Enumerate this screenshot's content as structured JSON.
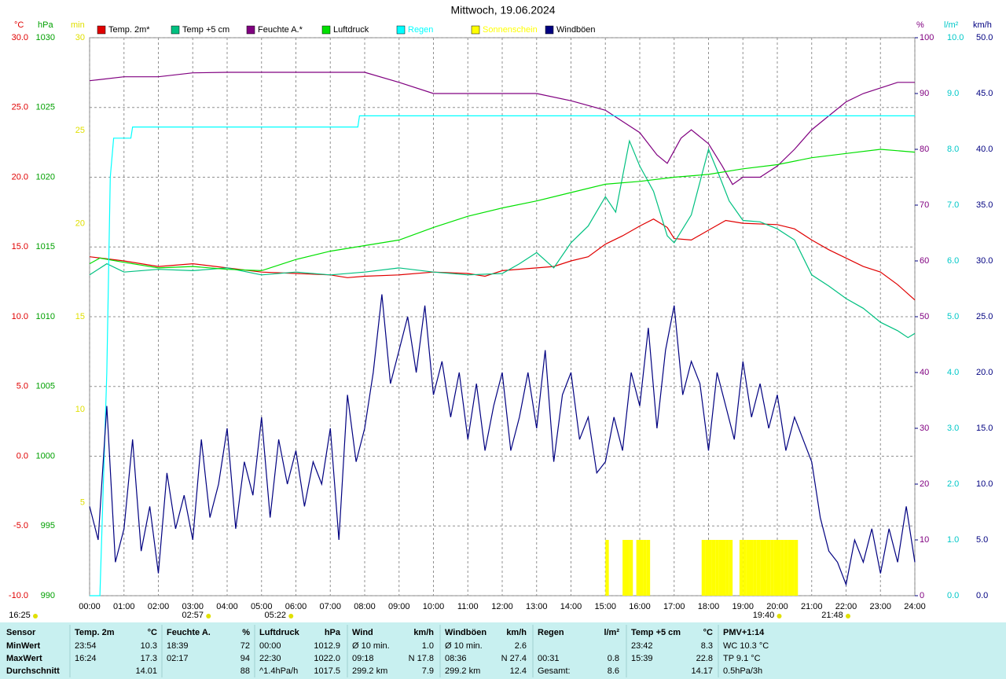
{
  "chart_data": {
    "type": "line",
    "title": "Mittwoch, 19.06.2024",
    "xlim": [
      0,
      24
    ],
    "xticks": [
      {
        "value": 0,
        "label": "00:00"
      },
      {
        "value": 1,
        "label": "01:00"
      },
      {
        "value": 2,
        "label": "02:00"
      },
      {
        "value": 3,
        "label": "03:00"
      },
      {
        "value": 4,
        "label": "04:00"
      },
      {
        "value": 5,
        "label": "05:00"
      },
      {
        "value": 6,
        "label": "06:00"
      },
      {
        "value": 7,
        "label": "07:00"
      },
      {
        "value": 8,
        "label": "08:00"
      },
      {
        "value": 9,
        "label": "09:00"
      },
      {
        "value": 10,
        "label": "10:00"
      },
      {
        "value": 11,
        "label": "11:00"
      },
      {
        "value": 12,
        "label": "12:00"
      },
      {
        "value": 13,
        "label": "13:00"
      },
      {
        "value": 14,
        "label": "14:00"
      },
      {
        "value": 15,
        "label": "15:00"
      },
      {
        "value": 16,
        "label": "16:00"
      },
      {
        "value": 17,
        "label": "17:00"
      },
      {
        "value": 18,
        "label": "18:00"
      },
      {
        "value": 19,
        "label": "19:00"
      },
      {
        "value": 20,
        "label": "20:00"
      },
      {
        "value": 21,
        "label": "21:00"
      },
      {
        "value": 22,
        "label": "22:00"
      },
      {
        "value": 23,
        "label": "23:00"
      },
      {
        "value": 24,
        "label": "24:00"
      }
    ],
    "grid": true,
    "y_axes": [
      {
        "label": "°C",
        "color": "#e00000",
        "side": "left",
        "lim": [
          -10,
          30
        ],
        "ticks": [
          {
            "value": -10,
            "label": "-10.0"
          },
          {
            "value": -5,
            "label": "-5.0"
          },
          {
            "value": 0,
            "label": "0.0"
          },
          {
            "value": 5,
            "label": "5.0"
          },
          {
            "value": 10,
            "label": "10.0"
          },
          {
            "value": 15,
            "label": "15.0"
          },
          {
            "value": 20,
            "label": "20.0"
          },
          {
            "value": 25,
            "label": "25.0"
          },
          {
            "value": 30,
            "label": "30.0"
          }
        ]
      },
      {
        "label": "hPa",
        "color": "#00a000",
        "side": "left",
        "lim": [
          990,
          1030
        ],
        "ticks": [
          990,
          995,
          1000,
          1005,
          1010,
          1015,
          1020,
          1025,
          1030
        ]
      },
      {
        "label": "min",
        "color": "#e0e000",
        "side": "left",
        "lim": [
          0,
          30
        ],
        "ticks": [
          5,
          10,
          15,
          20,
          25,
          30
        ]
      },
      {
        "label": "%",
        "color": "#800080",
        "side": "right",
        "lim": [
          0,
          100
        ],
        "ticks": [
          0,
          10,
          20,
          30,
          40,
          50,
          60,
          70,
          80,
          90,
          100
        ]
      },
      {
        "label": "l/m²",
        "color": "#00c8c8",
        "side": "right",
        "lim": [
          0,
          10
        ],
        "ticks": [
          {
            "value": 0,
            "label": "0.0"
          },
          {
            "value": 1,
            "label": "1.0"
          },
          {
            "value": 2,
            "label": "2.0"
          },
          {
            "value": 3,
            "label": "3.0"
          },
          {
            "value": 4,
            "label": "4.0"
          },
          {
            "value": 5,
            "label": "5.0"
          },
          {
            "value": 6,
            "label": "6.0"
          },
          {
            "value": 7,
            "label": "7.0"
          },
          {
            "value": 8,
            "label": "8.0"
          },
          {
            "value": 9,
            "label": "9.0"
          },
          {
            "value": 10,
            "label": "10.0"
          }
        ]
      },
      {
        "label": "km/h",
        "color": "#000080",
        "side": "right",
        "lim": [
          0,
          50
        ],
        "ticks": [
          {
            "value": 0,
            "label": "0.0"
          },
          {
            "value": 5,
            "label": "5.0"
          },
          {
            "value": 10,
            "label": "10.0"
          },
          {
            "value": 15,
            "label": "15.0"
          },
          {
            "value": 20,
            "label": "20.0"
          },
          {
            "value": 25,
            "label": "25.0"
          },
          {
            "value": 30,
            "label": "30.0"
          },
          {
            "value": 35,
            "label": "35.0"
          },
          {
            "value": 40,
            "label": "40.0"
          },
          {
            "value": 45,
            "label": "45.0"
          },
          {
            "value": 50,
            "label": "50.0"
          }
        ]
      }
    ],
    "series": [
      {
        "name": "Temp. 2m*",
        "color": "#e00000",
        "axis": 0,
        "style": "line",
        "x": [
          0,
          1,
          2,
          3,
          4,
          5,
          6,
          7,
          7.5,
          8,
          9,
          10,
          11,
          11.5,
          12,
          13,
          13.5,
          14,
          14.5,
          15,
          15.5,
          16,
          16.4,
          16.8,
          17,
          17.5,
          18,
          18.5,
          19,
          20,
          20.5,
          21,
          21.5,
          22,
          22.5,
          23,
          23.5,
          24
        ],
        "values": [
          14.3,
          14,
          13.6,
          13.8,
          13.5,
          13.2,
          13.1,
          13,
          12.8,
          12.9,
          13,
          13.2,
          13.1,
          12.9,
          13.3,
          13.5,
          13.6,
          14,
          14.3,
          15.2,
          15.8,
          16.5,
          17,
          16.4,
          15.6,
          15.5,
          16.2,
          16.9,
          16.7,
          16.6,
          16.3,
          15.5,
          14.8,
          14.2,
          13.6,
          13.2,
          12.3,
          11.2
        ]
      },
      {
        "name": "Temp +5 cm",
        "color": "#00c080",
        "axis": 0,
        "style": "line",
        "x": [
          0,
          0.5,
          1,
          2,
          3,
          4,
          5,
          6,
          7,
          8,
          9,
          10,
          11,
          12,
          12.5,
          13,
          13.5,
          14,
          14.5,
          15,
          15.3,
          15.7,
          16,
          16.4,
          16.8,
          17,
          17.5,
          18,
          18.3,
          18.6,
          19,
          19.5,
          20,
          20.5,
          21,
          21.5,
          22,
          22.5,
          23,
          23.5,
          23.8,
          24
        ],
        "values": [
          13,
          13.8,
          13.2,
          13.4,
          13.3,
          13.5,
          13,
          13.2,
          13,
          13.2,
          13.5,
          13.2,
          13,
          13.1,
          13.8,
          14.6,
          13.5,
          15.3,
          16.5,
          18.6,
          17.5,
          22.6,
          20.8,
          19,
          15.8,
          15.3,
          17.3,
          22,
          20.2,
          18.3,
          16.9,
          16.8,
          16.3,
          15.5,
          13,
          12.2,
          11.3,
          10.6,
          9.6,
          9,
          8.5,
          8.8
        ]
      },
      {
        "name": "Feuchte A.*",
        "color": "#800080",
        "axis": 3,
        "style": "line",
        "x": [
          0,
          1,
          2,
          3,
          4,
          5,
          6,
          7,
          8,
          9,
          10,
          11,
          12,
          13,
          14,
          15,
          15.5,
          16,
          16.5,
          16.8,
          17.2,
          17.5,
          18,
          18.4,
          18.7,
          19,
          19.5,
          20,
          20.5,
          21,
          21.5,
          22,
          22.5,
          23,
          23.5,
          24
        ],
        "values": [
          92.3,
          93,
          93,
          93.7,
          93.8,
          93.8,
          93.8,
          93.8,
          93.8,
          92,
          90,
          90,
          90,
          90,
          88.7,
          87,
          85,
          83,
          79,
          77.5,
          82,
          83.5,
          81,
          77,
          73.7,
          75,
          75,
          77,
          80,
          83.5,
          86,
          88.5,
          90,
          91,
          92,
          92
        ]
      },
      {
        "name": "Luftdruck",
        "color": "#00e000",
        "axis": 1,
        "style": "line",
        "x": [
          0,
          0.3,
          1,
          2,
          3,
          4,
          5,
          6,
          7,
          8,
          9,
          10,
          11,
          12,
          13,
          14,
          15,
          16,
          17,
          18,
          19,
          20,
          21,
          22,
          23,
          24
        ],
        "values": [
          1013.8,
          1014.2,
          1013.9,
          1013.5,
          1013.6,
          1013.4,
          1013.3,
          1014.1,
          1014.7,
          1015.1,
          1015.5,
          1016.4,
          1017.2,
          1017.8,
          1018.3,
          1018.9,
          1019.5,
          1019.7,
          1020,
          1020.2,
          1020.6,
          1020.9,
          1021.4,
          1021.7,
          1022,
          1021.8
        ]
      },
      {
        "name": "Regen",
        "color": "#00ffff",
        "axis": 4,
        "style": "line",
        "x": [
          0,
          0.3,
          0.4,
          0.5,
          0.6,
          0.7,
          1.2,
          1.25,
          7.8,
          7.85,
          24
        ],
        "values": [
          0,
          0,
          2,
          4,
          7.5,
          8.2,
          8.2,
          8.4,
          8.4,
          8.6,
          8.6
        ]
      },
      {
        "name": "Sonnenschein",
        "color": "#ffff00",
        "axis": 2,
        "style": "bar",
        "x": [
          15,
          15.5,
          15.6,
          15.7,
          15.9,
          16,
          16.1,
          16.2,
          17.8,
          17.9,
          18,
          18.1,
          18.2,
          18.3,
          18.4,
          18.5,
          18.6,
          18.9,
          19,
          19.1,
          19.2,
          19.3,
          19.4,
          19.5,
          19.6,
          19.7,
          19.8,
          19.9,
          20,
          20.1,
          20.2,
          20.3,
          20.4,
          20.5
        ],
        "values": [
          3,
          3,
          3,
          3,
          3,
          3,
          3,
          3,
          3,
          3,
          3,
          3,
          3,
          3,
          3,
          3,
          3,
          3,
          3,
          3,
          3,
          3,
          3,
          3,
          3,
          3,
          3,
          3,
          3,
          3,
          3,
          3,
          3,
          3
        ]
      },
      {
        "name": "Windböen",
        "color": "#000080",
        "axis": 5,
        "style": "line",
        "x": [
          0,
          0.25,
          0.5,
          0.75,
          1,
          1.25,
          1.5,
          1.75,
          2,
          2.25,
          2.5,
          2.75,
          3,
          3.25,
          3.5,
          3.75,
          4,
          4.25,
          4.5,
          4.75,
          5,
          5.25,
          5.5,
          5.75,
          6,
          6.25,
          6.5,
          6.75,
          7,
          7.25,
          7.5,
          7.75,
          8,
          8.25,
          8.5,
          8.75,
          9,
          9.25,
          9.5,
          9.75,
          10,
          10.25,
          10.5,
          10.75,
          11,
          11.25,
          11.5,
          11.75,
          12,
          12.25,
          12.5,
          12.75,
          13,
          13.25,
          13.5,
          13.75,
          14,
          14.25,
          14.5,
          14.75,
          15,
          15.25,
          15.5,
          15.75,
          16,
          16.25,
          16.5,
          16.75,
          17,
          17.25,
          17.5,
          17.75,
          18,
          18.25,
          18.5,
          18.75,
          19,
          19.25,
          19.5,
          19.75,
          20,
          20.25,
          20.5,
          20.75,
          21,
          21.25,
          21.5,
          21.75,
          22,
          22.25,
          22.5,
          22.75,
          23,
          23.25,
          23.5,
          23.75,
          24
        ],
        "values": [
          8,
          5,
          17,
          3,
          6,
          14,
          4,
          8,
          2,
          11,
          6,
          9,
          5,
          14,
          7,
          10,
          15,
          6,
          12,
          9,
          16,
          7,
          14,
          10,
          13,
          8,
          12,
          10,
          15,
          5,
          18,
          12,
          15,
          20,
          27,
          19,
          22,
          25,
          20,
          26,
          18,
          21,
          16,
          20,
          14,
          19,
          13,
          17,
          20,
          13,
          16,
          20,
          15,
          22,
          12,
          18,
          20,
          14,
          16,
          11,
          12,
          16,
          13,
          20,
          17,
          24,
          15,
          22,
          26,
          18,
          21,
          19,
          13,
          20,
          17,
          14,
          21,
          16,
          19,
          15,
          18,
          13,
          16,
          14,
          12,
          7,
          4,
          3,
          1,
          5,
          3,
          6,
          2,
          6,
          3,
          8,
          3
        ]
      }
    ],
    "markers": [
      {
        "x": 0,
        "label": "16:25"
      },
      {
        "x": 3,
        "label": "02:57"
      },
      {
        "x": 5.4,
        "label": "05:22"
      },
      {
        "x": 19.6,
        "label": "19:40"
      },
      {
        "x": 21.6,
        "label": "21:48"
      }
    ]
  },
  "table": {
    "columns": [
      {
        "header": "Sensor",
        "cells": [
          [
            "MinWert"
          ],
          [
            "MaxWert"
          ],
          [
            "Durchschnitt"
          ]
        ]
      },
      {
        "header": "Temp. 2m",
        "unit": "°C",
        "cells": [
          [
            "23:54",
            "10.3"
          ],
          [
            "16:24",
            "17.3"
          ],
          [
            "14.01"
          ]
        ]
      },
      {
        "header": "Feuchte A.",
        "unit": "%",
        "cells": [
          [
            "18:39",
            "72"
          ],
          [
            "02:17",
            "94"
          ],
          [
            "88"
          ]
        ]
      },
      {
        "header": "Luftdruck",
        "unit": "hPa",
        "cells": [
          [
            "00:00",
            "1012.9"
          ],
          [
            "22:30",
            "1022.0"
          ],
          [
            "^1.4hPa/h",
            "1017.5"
          ]
        ]
      },
      {
        "header": "Wind",
        "unit": "km/h",
        "cells": [
          [
            "Ø 10 min.",
            "1.0"
          ],
          [
            "09:18",
            "N 17.8"
          ],
          [
            "299.2 km",
            "7.9"
          ]
        ]
      },
      {
        "header": "Windböen",
        "unit": "km/h",
        "cells": [
          [
            "Ø 10 min.",
            "2.6"
          ],
          [
            "08:36",
            "N 27.4"
          ],
          [
            "299.2 km",
            "12.4"
          ]
        ]
      },
      {
        "header": "Regen",
        "unit": "l/m²",
        "cells": [
          [],
          [
            "00:31",
            "0.8"
          ],
          [
            "Gesamt:",
            "8.6"
          ]
        ]
      },
      {
        "header": "Temp +5 cm",
        "unit": "°C",
        "cells": [
          [
            "23:42",
            "8.3"
          ],
          [
            "15:39",
            "22.8"
          ],
          [
            "14.17"
          ]
        ]
      },
      {
        "header": "PMV+1:14",
        "cells": [
          [
            "WC 10.3 °C"
          ],
          [
            "TP 9.1 °C"
          ],
          [
            "0.5hPa/3h"
          ]
        ]
      }
    ]
  }
}
